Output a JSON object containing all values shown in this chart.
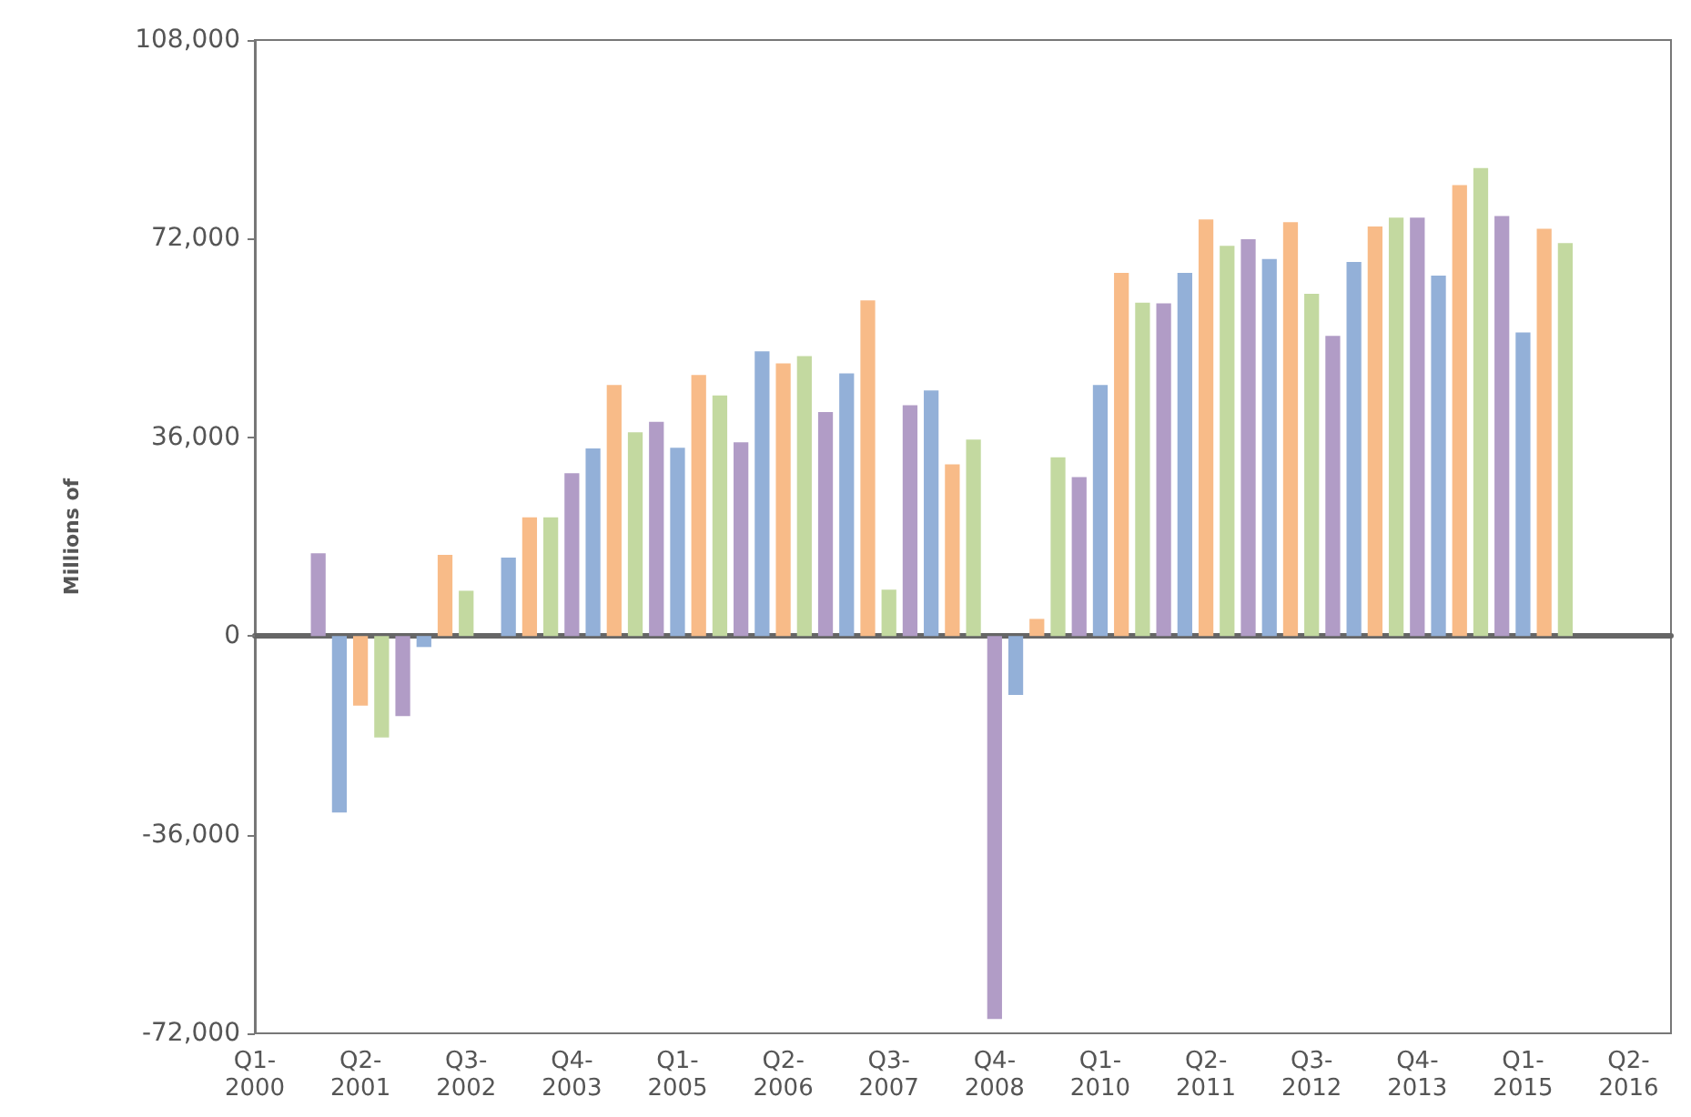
{
  "chart_data": {
    "type": "bar",
    "ylabel": "Millions of",
    "categories": [
      "Q1-2000",
      null,
      null,
      null,
      null,
      "Q2-2001",
      null,
      null,
      null,
      null,
      "Q3-2002",
      null,
      null,
      null,
      null,
      "Q4-2003",
      null,
      null,
      null,
      null,
      "Q1-2005",
      null,
      null,
      null,
      null,
      "Q2-2006",
      null,
      null,
      null,
      null,
      "Q3-2007",
      null,
      null,
      null,
      null,
      "Q4-2008",
      null,
      null,
      null,
      null,
      "Q1-2010",
      null,
      null,
      null,
      null,
      "Q2-2011",
      null,
      null,
      null,
      null,
      "Q3-2012",
      null,
      null,
      null,
      null,
      "Q4-2013",
      null,
      null,
      null,
      null,
      "Q1-2015",
      null,
      null,
      null,
      null,
      "Q2-2016",
      null,
      null
    ],
    "values": [
      null,
      null,
      null,
      15000,
      -32000,
      -12600,
      -18400,
      -14500,
      -2000,
      14700,
      8200,
      null,
      14200,
      21500,
      21500,
      29500,
      34000,
      45500,
      36900,
      38800,
      34100,
      47300,
      43600,
      35100,
      51600,
      49400,
      50700,
      40600,
      47600,
      60800,
      8400,
      41800,
      44500,
      31100,
      35600,
      -69400,
      -10700,
      3100,
      32400,
      28800,
      45500,
      65800,
      60400,
      60300,
      65800,
      75500,
      70700,
      71900,
      68300,
      75000,
      62000,
      54400,
      67800,
      74200,
      75800,
      75800,
      65300,
      81700,
      84800,
      76100,
      55000,
      73800,
      71200,
      null,
      null,
      null,
      null,
      null
    ],
    "colors": [
      "#93b0d8",
      "#f8bb88",
      "#c3d9a0",
      "#b19cc6",
      "#93b0d8",
      "#f8bb88",
      "#c3d9a0",
      "#b19cc6",
      "#93b0d8",
      "#f8bb88",
      "#c3d9a0",
      "#b19cc6",
      "#93b0d8",
      "#f8bb88",
      "#c3d9a0",
      "#b19cc6",
      "#93b0d8",
      "#f8bb88",
      "#c3d9a0",
      "#b19cc6",
      "#93b0d8",
      "#f8bb88",
      "#c3d9a0",
      "#b19cc6",
      "#93b0d8",
      "#f8bb88",
      "#c3d9a0",
      "#b19cc6",
      "#93b0d8",
      "#f8bb88",
      "#c3d9a0",
      "#b19cc6",
      "#93b0d8",
      "#f8bb88",
      "#c3d9a0",
      "#b19cc6",
      "#93b0d8",
      "#f8bb88",
      "#c3d9a0",
      "#b19cc6",
      "#93b0d8",
      "#f8bb88",
      "#c3d9a0",
      "#b19cc6",
      "#93b0d8",
      "#f8bb88",
      "#c3d9a0",
      "#b19cc6",
      "#93b0d8",
      "#f8bb88",
      "#c3d9a0",
      "#b19cc6",
      "#93b0d8",
      "#f8bb88",
      "#c3d9a0",
      "#b19cc6",
      "#93b0d8",
      "#f8bb88",
      "#c3d9a0",
      "#b19cc6",
      "#93b0d8",
      "#f8bb88",
      "#c3d9a0",
      "#b19cc6",
      "#93b0d8",
      "#f8bb88",
      "#c3d9a0",
      "#b19cc6"
    ],
    "ylim": [
      -72000,
      108000
    ],
    "yticks": [
      {
        "value": -72000,
        "label": "-72,000"
      },
      {
        "value": -36000,
        "label": "-36,000"
      },
      0,
      {
        "value": 36000,
        "label": "36,000"
      },
      {
        "value": 72000,
        "label": "72,000"
      },
      {
        "value": 108000,
        "label": "108,000"
      }
    ]
  }
}
